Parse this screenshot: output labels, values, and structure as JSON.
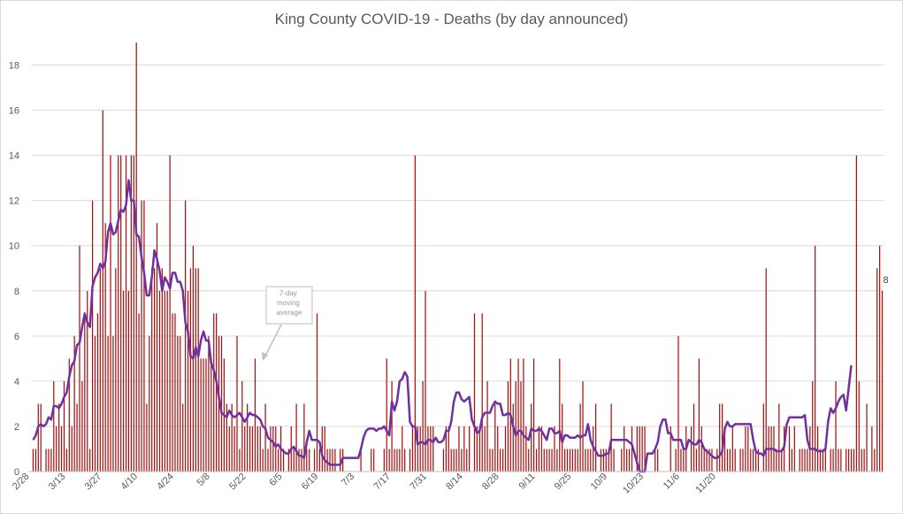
{
  "chart_data": {
    "type": "bar",
    "title": "King County COVID-19 - Deaths (by day announced)",
    "xlabel": "",
    "ylabel": "",
    "ylim": [
      0,
      19
    ],
    "yticks": [
      0,
      2,
      4,
      6,
      8,
      10,
      12,
      14,
      16,
      18
    ],
    "start_date": "2/28",
    "tick_labels": [
      "2/28",
      "3/13",
      "3/27",
      "4/10",
      "4/24",
      "5/8",
      "5/22",
      "6/5",
      "6/19",
      "7/3",
      "7/17",
      "7/31",
      "8/14",
      "8/28",
      "9/11",
      "9/25",
      "10/9",
      "10/23",
      "11/6",
      "11/20"
    ],
    "grid": "horizontal",
    "bar_color": "#a50f0f",
    "line_color": "#7030a0",
    "series": [
      {
        "name": "Deaths",
        "values": [
          1,
          1,
          3,
          3,
          0,
          1,
          1,
          1,
          4,
          2,
          3,
          2,
          4,
          1,
          5,
          2,
          6,
          3,
          10,
          4,
          7,
          8,
          1,
          12,
          6,
          7,
          9,
          16,
          11,
          6,
          14,
          6,
          9,
          14,
          14,
          8,
          14,
          8,
          14,
          14,
          19,
          7,
          12,
          12,
          3,
          6,
          9,
          9,
          11,
          8,
          9,
          8,
          8,
          14,
          7,
          7,
          6,
          6,
          3,
          12,
          8,
          9,
          10,
          9,
          9,
          5,
          5,
          5,
          6,
          5,
          7,
          7,
          6,
          6,
          5,
          3,
          2,
          3,
          2,
          6,
          1,
          4,
          2,
          3,
          2,
          2,
          5,
          2,
          2,
          1,
          3,
          1,
          2,
          2,
          2,
          1,
          2,
          1,
          0,
          1,
          2,
          1,
          3,
          1,
          1,
          3,
          1,
          1,
          0,
          1,
          7,
          1,
          2,
          2,
          1,
          1,
          1,
          1,
          0,
          1,
          1,
          0,
          0,
          0,
          0,
          0,
          0,
          1,
          0,
          0,
          0,
          1,
          1,
          0,
          0,
          0,
          1,
          5,
          1,
          4,
          1,
          1,
          1,
          2,
          1,
          0,
          1,
          2,
          14,
          2,
          2,
          4,
          8,
          2,
          2,
          2,
          0,
          0,
          0,
          1,
          2,
          2,
          1,
          1,
          1,
          2,
          1,
          2,
          1,
          2,
          0,
          7,
          2,
          2,
          7,
          2,
          4,
          1,
          1,
          3,
          2,
          1,
          1,
          2,
          4,
          5,
          3,
          4,
          5,
          4,
          5,
          2,
          1,
          3,
          5,
          1,
          2,
          2,
          1,
          1,
          1,
          1,
          2,
          1,
          5,
          3,
          1,
          1,
          1,
          1,
          1,
          1,
          3,
          4,
          1,
          1,
          1,
          2,
          3,
          0,
          1,
          1,
          1,
          1,
          3,
          1,
          0,
          0,
          1,
          2,
          1,
          1,
          2,
          0,
          2,
          2,
          2,
          2,
          0,
          0,
          0,
          1,
          1,
          0,
          0,
          0,
          0,
          2,
          0,
          1,
          6,
          1,
          1,
          2,
          0,
          2,
          3,
          1,
          5,
          2,
          1,
          1,
          1,
          1,
          0,
          1,
          3,
          3,
          2,
          1,
          1,
          2,
          1,
          0,
          1,
          1,
          2,
          2,
          1,
          1,
          1,
          1,
          0,
          3,
          9,
          2,
          2,
          2,
          1,
          3,
          1,
          2,
          0,
          2,
          1,
          2,
          0,
          1,
          1,
          1,
          1,
          2,
          4,
          10,
          2,
          1,
          1,
          1,
          0,
          1,
          1,
          4,
          1,
          1,
          0,
          1,
          1,
          1,
          1,
          14,
          4,
          1,
          1,
          3,
          0,
          2,
          1,
          9,
          10,
          8
        ]
      },
      {
        "name": "7-day moving average",
        "values": [
          1.4,
          1.6,
          2.0,
          2.1,
          2.0,
          2.1,
          2.4,
          2.3,
          2.9,
          2.9,
          2.8,
          3.0,
          3.3,
          3.5,
          4.2,
          4.7,
          4.9,
          5.6,
          5.7,
          6.4,
          7.0,
          6.6,
          6.4,
          8.2,
          8.6,
          8.8,
          9.2,
          9.0,
          9.3,
          10.6,
          11.0,
          10.5,
          10.6,
          11.1,
          11.6,
          11.5,
          11.8,
          12.9,
          12.0,
          12.0,
          10.5,
          10.4,
          9.5,
          8.8,
          7.8,
          7.8,
          8.6,
          9.8,
          9.4,
          8.9,
          8.0,
          8.6,
          8.4,
          8.1,
          8.8,
          8.8,
          8.4,
          8.4,
          8.0,
          6.6,
          6.2,
          5.1,
          5.0,
          5.5,
          5.1,
          5.8,
          6.2,
          5.8,
          5.8,
          4.8,
          4.5,
          4.0,
          3.3,
          2.6,
          2.5,
          2.4,
          2.7,
          2.5,
          2.4,
          2.5,
          2.6,
          2.4,
          2.2,
          2.4,
          2.6,
          2.5,
          2.5,
          2.4,
          2.3,
          2.0,
          1.9,
          1.5,
          1.4,
          1.3,
          1.1,
          1.2,
          1.0,
          0.9,
          0.8,
          0.8,
          1.0,
          1.1,
          0.9,
          0.7,
          0.7,
          0.6,
          1.3,
          1.8,
          1.4,
          1.4,
          1.4,
          1.3,
          0.7,
          0.5,
          0.4,
          0.3,
          0.3,
          0.3,
          0.3,
          0.3,
          0.6,
          0.6,
          0.6,
          0.6,
          0.6,
          0.6,
          0.6,
          1.0,
          1.5,
          1.8,
          1.9,
          1.9,
          1.9,
          1.8,
          1.9,
          1.9,
          2.0,
          1.8,
          1.6,
          3.1,
          2.7,
          3.1,
          4.0,
          4.1,
          4.4,
          4.2,
          2.2,
          2.0,
          2.0,
          1.2,
          1.3,
          1.3,
          1.2,
          1.4,
          1.4,
          1.3,
          1.5,
          1.3,
          1.3,
          1.4,
          1.8,
          1.8,
          2.2,
          3.1,
          3.5,
          3.5,
          3.2,
          3.1,
          3.2,
          3.3,
          2.3,
          2.0,
          1.7,
          1.8,
          2.4,
          2.6,
          2.6,
          2.6,
          2.9,
          3.1,
          3.0,
          3.0,
          2.5,
          2.5,
          2.6,
          2.5,
          2.0,
          1.6,
          1.8,
          1.8,
          1.6,
          1.5,
          1.4,
          1.9,
          1.8,
          1.8,
          1.9,
          1.8,
          1.6,
          1.4,
          1.9,
          1.9,
          1.7,
          1.7,
          1.8,
          1.3,
          1.6,
          1.6,
          1.5,
          1.5,
          1.5,
          1.6,
          1.5,
          1.6,
          1.6,
          2.1,
          1.4,
          1.1,
          0.9,
          0.7,
          0.7,
          0.7,
          0.8,
          0.8,
          1.4,
          1.4,
          1.4,
          1.4,
          1.4,
          1.4,
          1.4,
          1.3,
          1.2,
          0.8,
          0.4,
          0.0,
          0.0,
          0.0,
          0.8,
          0.8,
          0.8,
          1.0,
          1.3,
          2.0,
          2.3,
          2.3,
          1.7,
          1.7,
          1.4,
          1.4,
          1.4,
          1.4,
          1.0,
          1.0,
          1.4,
          1.3,
          1.2,
          1.2,
          1.4,
          1.3,
          1.0,
          0.9,
          0.8,
          0.7,
          0.6,
          0.6,
          0.7,
          0.9,
          1.9,
          2.2,
          2.0,
          2.0,
          2.1,
          2.1,
          2.1,
          2.1,
          2.1,
          2.1,
          2.1,
          1.4,
          0.9,
          0.8,
          0.8,
          0.7,
          1.0,
          1.0,
          1.0,
          1.0,
          0.9,
          0.9,
          0.9,
          1.1,
          2.1,
          2.4,
          2.4,
          2.4,
          2.4,
          2.4,
          2.4,
          2.5,
          1.4,
          1.0,
          1.0,
          1.0,
          0.9,
          0.9,
          0.9,
          1.0,
          2.2,
          2.8,
          2.6,
          2.8,
          3.1,
          3.3,
          3.4,
          2.7,
          3.7,
          4.7
        ]
      }
    ],
    "annotations": [
      {
        "text": "7-day moving average",
        "target": "7-day moving average"
      },
      {
        "text": "8",
        "target": "last bar"
      }
    ]
  }
}
